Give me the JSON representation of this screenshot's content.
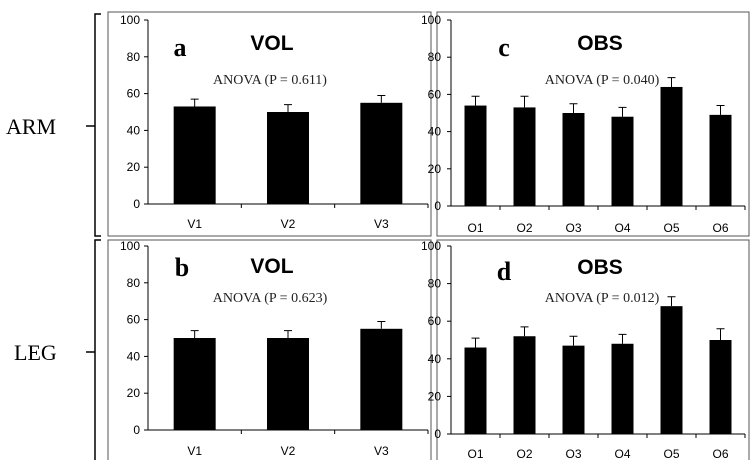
{
  "row_labels": [
    "ARM",
    "LEG"
  ],
  "chart_data": [
    {
      "type": "bar",
      "panel": "a",
      "title": "VOL",
      "annotation": "ANOVA (P = 0.611)",
      "categories": [
        "V1",
        "V2",
        "V3"
      ],
      "values": [
        53,
        50,
        55
      ],
      "errors": [
        4,
        4,
        4
      ],
      "ylim": [
        0,
        100
      ],
      "yticks": [
        0,
        20,
        40,
        60,
        80,
        100
      ],
      "grid": false
    },
    {
      "type": "bar",
      "panel": "c",
      "title": "OBS",
      "annotation": "ANOVA (P = 0.040)",
      "categories": [
        "O1",
        "O2",
        "O3",
        "O4",
        "O5",
        "O6"
      ],
      "values": [
        54,
        53,
        50,
        48,
        64,
        49
      ],
      "errors": [
        5,
        6,
        5,
        5,
        5,
        5
      ],
      "ylim": [
        0,
        100
      ],
      "yticks": [
        0,
        20,
        40,
        60,
        80,
        100
      ],
      "grid": false
    },
    {
      "type": "bar",
      "panel": "b",
      "title": "VOL",
      "annotation": "ANOVA (P = 0.623)",
      "categories": [
        "V1",
        "V2",
        "V3"
      ],
      "values": [
        50,
        50,
        55
      ],
      "errors": [
        4,
        4,
        4
      ],
      "ylim": [
        0,
        100
      ],
      "yticks": [
        0,
        20,
        40,
        60,
        80,
        100
      ],
      "grid": false
    },
    {
      "type": "bar",
      "panel": "d",
      "title": "OBS",
      "annotation": "ANOVA (P = 0.012)",
      "categories": [
        "O1",
        "O2",
        "O3",
        "O4",
        "O5",
        "O6"
      ],
      "values": [
        46,
        52,
        47,
        48,
        68,
        50
      ],
      "errors": [
        5,
        5,
        5,
        5,
        5,
        6
      ],
      "ylim": [
        0,
        100
      ],
      "yticks": [
        0,
        20,
        40,
        60,
        80,
        100
      ],
      "grid": false
    }
  ]
}
